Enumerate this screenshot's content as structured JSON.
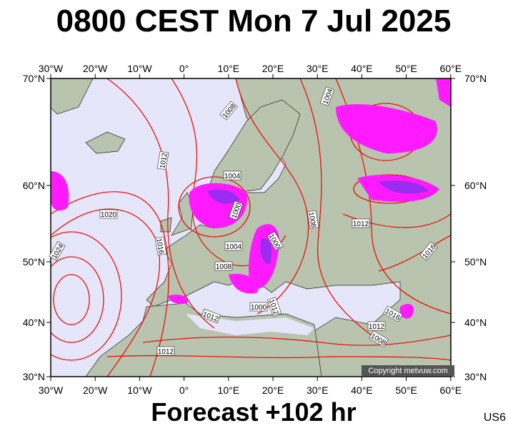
{
  "title": "0800 CEST Mon 7 Jul 2025",
  "axes": {
    "lon_labels": [
      "30°W",
      "20°W",
      "10°W",
      "0°",
      "10°E",
      "20°E",
      "30°E",
      "40°E",
      "50°E",
      "60°E"
    ],
    "lat_labels": [
      "70°N",
      "60°N",
      "50°N",
      "40°N",
      "30°N"
    ]
  },
  "isobar_labels": [
    "1008",
    "1004",
    "1012",
    "1004",
    "1020",
    "1000",
    "1016",
    "1024",
    "1004",
    "1000",
    "1008",
    "1012",
    "1016",
    "1008",
    "1012",
    "1000",
    "1012",
    "1016",
    "1012",
    "1008",
    "1012"
  ],
  "copyright": "Copyright metvuw.com",
  "footer": "Forecast +102 hr",
  "code": "US6"
}
